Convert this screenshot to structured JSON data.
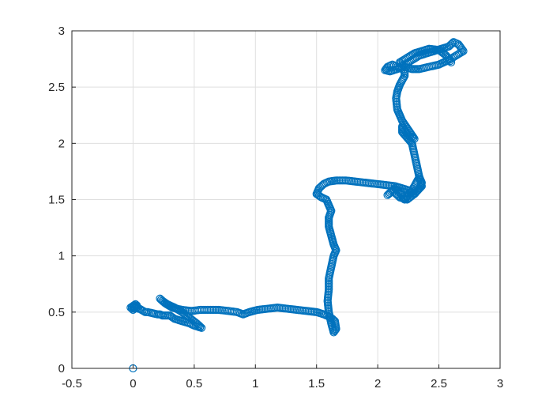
{
  "chart_data": {
    "type": "scatter",
    "title": "",
    "xlabel": "",
    "ylabel": "",
    "xlim": [
      -0.5,
      3
    ],
    "ylim": [
      0,
      3
    ],
    "grid": true,
    "marker": "circle-open",
    "color": "#0072BD",
    "x_ticks": [
      -0.5,
      0,
      0.5,
      1,
      1.5,
      2,
      2.5,
      3
    ],
    "x_tick_labels": [
      "-0.5",
      "0",
      "0.5",
      "1",
      "1.5",
      "2",
      "2.5",
      "3"
    ],
    "y_ticks": [
      0,
      0.5,
      1,
      1.5,
      2,
      2.5,
      3
    ],
    "y_tick_labels": [
      "0",
      "0.5",
      "1",
      "1.5",
      "2",
      "2.5",
      "3"
    ],
    "series": [
      {
        "x": [
          0,
          0,
          0.01,
          0.03,
          0,
          -0.02,
          0.02,
          0.04,
          0.02,
          0.1,
          0.12,
          0.2,
          0.22,
          0.24,
          0.3,
          0.34,
          0.4,
          0.46,
          0.5,
          0.56,
          0.52,
          0.46,
          0.4,
          0.34,
          0.28,
          0.24,
          0.22,
          0.26,
          0.32,
          0.4,
          0.48,
          0.55,
          0.62,
          0.7,
          0.78,
          0.85,
          0.9,
          0.95,
          1.02,
          1.1,
          1.18,
          1.26,
          1.34,
          1.42,
          1.5,
          1.56,
          1.6,
          1.63,
          1.65,
          1.66,
          1.64,
          1.62,
          1.6,
          1.59,
          1.6,
          1.6,
          1.62,
          1.64,
          1.66,
          1.64,
          1.62,
          1.6,
          1.6,
          1.62,
          1.6,
          1.58,
          1.54,
          1.5,
          1.52,
          1.56,
          1.6,
          1.66,
          1.74,
          1.82,
          1.9,
          1.98,
          2.06,
          2.14,
          2.2,
          2.26,
          2.3,
          2.34,
          2.36,
          2.34,
          2.3,
          2.26,
          2.22,
          2.18,
          2.14,
          2.08,
          2.12,
          2.18,
          2.24,
          2.3,
          2.36,
          2.34,
          2.32,
          2.3,
          2.28,
          2.24,
          2.2,
          2.2,
          2.24,
          2.3,
          2.2,
          2.18,
          2.16,
          2.15,
          2.16,
          2.18,
          2.2,
          2.22,
          2.22,
          2.2,
          2.16,
          2.12,
          2.08,
          2.06,
          2.1,
          2.16,
          2.22,
          2.28,
          2.34,
          2.4,
          2.46,
          2.52,
          2.58,
          2.62,
          2.66,
          2.7,
          2.64,
          2.58,
          2.5,
          2.42,
          2.34,
          2.28,
          2.22,
          2.18,
          2.24,
          2.3,
          2.36,
          2.42,
          2.5,
          2.56,
          2.6
        ],
        "y": [
          0,
          0.55,
          0.53,
          0.56,
          0.52,
          0.54,
          0.57,
          0.53,
          0.55,
          0.5,
          0.5,
          0.48,
          0.48,
          0.47,
          0.47,
          0.44,
          0.42,
          0.4,
          0.38,
          0.36,
          0.4,
          0.45,
          0.5,
          0.54,
          0.57,
          0.6,
          0.62,
          0.58,
          0.54,
          0.52,
          0.51,
          0.52,
          0.52,
          0.52,
          0.51,
          0.5,
          0.48,
          0.5,
          0.52,
          0.53,
          0.54,
          0.53,
          0.52,
          0.51,
          0.5,
          0.48,
          0.46,
          0.44,
          0.42,
          0.35,
          0.32,
          0.4,
          0.5,
          0.6,
          0.7,
          0.8,
          0.9,
          1.0,
          1.05,
          1.1,
          1.18,
          1.26,
          1.34,
          1.4,
          1.45,
          1.5,
          1.52,
          1.55,
          1.6,
          1.64,
          1.66,
          1.67,
          1.67,
          1.66,
          1.65,
          1.64,
          1.63,
          1.62,
          1.6,
          1.58,
          1.55,
          1.6,
          1.65,
          1.7,
          1.62,
          1.55,
          1.5,
          1.56,
          1.6,
          1.54,
          1.58,
          1.52,
          1.5,
          1.55,
          1.62,
          1.7,
          1.8,
          1.9,
          2.0,
          2.05,
          2.1,
          2.15,
          2.08,
          2.04,
          2.2,
          2.25,
          2.3,
          2.4,
          2.46,
          2.52,
          2.56,
          2.6,
          2.64,
          2.66,
          2.68,
          2.7,
          2.68,
          2.65,
          2.64,
          2.66,
          2.7,
          2.74,
          2.78,
          2.8,
          2.82,
          2.84,
          2.86,
          2.9,
          2.88,
          2.82,
          2.78,
          2.74,
          2.7,
          2.68,
          2.66,
          2.66,
          2.68,
          2.72,
          2.76,
          2.8,
          2.82,
          2.84,
          2.83,
          2.78,
          2.72
        ]
      }
    ]
  }
}
